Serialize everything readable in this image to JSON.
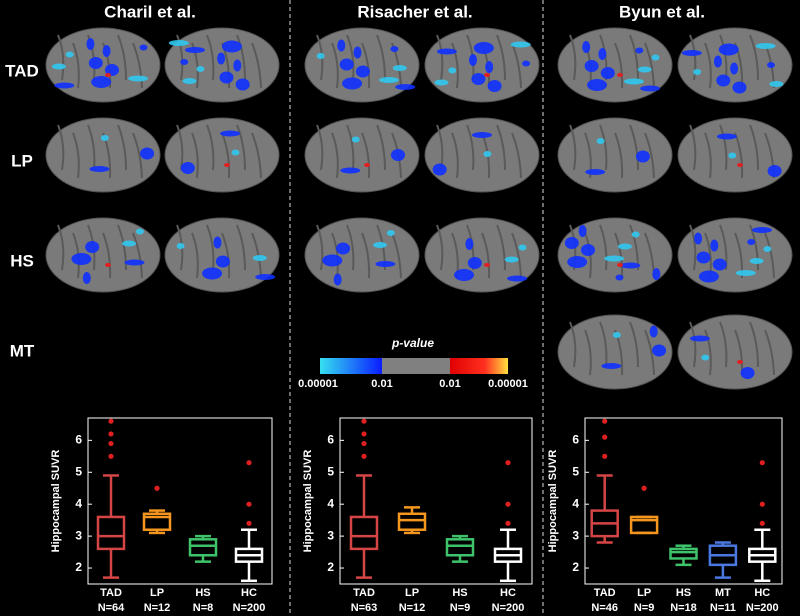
{
  "columns": [
    "Charil et al.",
    "Risacher et al.",
    "Byun et al."
  ],
  "rows": [
    "TAD",
    "LP",
    "HS",
    "MT"
  ],
  "colorbar": {
    "title": "p-value",
    "labels": [
      "0.00001",
      "0.01",
      "0.01",
      "0.00001"
    ]
  },
  "chart_data": [
    {
      "type": "box",
      "ylabel": "Hippocampal SUVR",
      "ylim": [
        1.5,
        6.7
      ],
      "yticks": [
        2,
        3,
        4,
        5,
        6
      ],
      "categories": [
        "TAD",
        "LP",
        "HS",
        "HC"
      ],
      "counts": [
        "N=64",
        "N=12",
        "N=8",
        "N=200"
      ],
      "boxes": [
        {
          "min": 1.7,
          "q1": 2.6,
          "median": 3.0,
          "q3": 3.6,
          "max": 4.9,
          "outliers": [
            5.5,
            5.9,
            6.2,
            6.6
          ],
          "color": "#d64545"
        },
        {
          "min": 3.1,
          "q1": 3.2,
          "median": 3.6,
          "q3": 3.7,
          "max": 3.8,
          "outliers": [
            4.5
          ],
          "color": "#f5961f"
        },
        {
          "min": 2.2,
          "q1": 2.4,
          "median": 2.7,
          "q3": 2.9,
          "max": 3.0,
          "outliers": [],
          "color": "#3ec36b"
        },
        {
          "min": 1.6,
          "q1": 2.2,
          "median": 2.4,
          "q3": 2.6,
          "max": 3.2,
          "outliers": [
            3.4,
            4.0,
            5.3
          ],
          "color": "#ffffff"
        }
      ]
    },
    {
      "type": "box",
      "ylabel": "Hippocampal SUVR",
      "ylim": [
        1.5,
        6.7
      ],
      "yticks": [
        2,
        3,
        4,
        5,
        6
      ],
      "categories": [
        "TAD",
        "LP",
        "HS",
        "HC"
      ],
      "counts": [
        "N=63",
        "N=12",
        "N=9",
        "N=200"
      ],
      "boxes": [
        {
          "min": 1.7,
          "q1": 2.6,
          "median": 3.0,
          "q3": 3.6,
          "max": 4.9,
          "outliers": [
            5.5,
            5.9,
            6.2,
            6.6
          ],
          "color": "#d64545"
        },
        {
          "min": 3.1,
          "q1": 3.2,
          "median": 3.5,
          "q3": 3.7,
          "max": 3.9,
          "outliers": [],
          "color": "#f5961f"
        },
        {
          "min": 2.2,
          "q1": 2.4,
          "median": 2.7,
          "q3": 2.9,
          "max": 3.0,
          "outliers": [],
          "color": "#3ec36b"
        },
        {
          "min": 1.6,
          "q1": 2.2,
          "median": 2.4,
          "q3": 2.6,
          "max": 3.2,
          "outliers": [
            3.4,
            4.0,
            5.3
          ],
          "color": "#ffffff"
        }
      ]
    },
    {
      "type": "box",
      "ylabel": "Hippocampal SUVR",
      "ylim": [
        1.5,
        6.7
      ],
      "yticks": [
        2,
        3,
        4,
        5,
        6
      ],
      "categories": [
        "TAD",
        "LP",
        "HS",
        "MT",
        "HC"
      ],
      "counts": [
        "N=46",
        "N=9",
        "N=18",
        "N=11",
        "N=200"
      ],
      "boxes": [
        {
          "min": 2.8,
          "q1": 3.0,
          "median": 3.4,
          "q3": 3.8,
          "max": 4.9,
          "outliers": [
            5.5,
            6.1,
            6.6
          ],
          "color": "#d64545"
        },
        {
          "min": 3.1,
          "q1": 3.1,
          "median": 3.5,
          "q3": 3.6,
          "max": 3.6,
          "outliers": [
            4.5
          ],
          "color": "#f5961f"
        },
        {
          "min": 2.1,
          "q1": 2.3,
          "median": 2.5,
          "q3": 2.6,
          "max": 2.7,
          "outliers": [],
          "color": "#3ec36b"
        },
        {
          "min": 1.7,
          "q1": 2.1,
          "median": 2.4,
          "q3": 2.7,
          "max": 2.8,
          "outliers": [],
          "color": "#4a78e0"
        },
        {
          "min": 1.6,
          "q1": 2.2,
          "median": 2.4,
          "q3": 2.6,
          "max": 3.2,
          "outliers": [
            3.4,
            4.0,
            5.3
          ],
          "color": "#ffffff"
        }
      ]
    }
  ]
}
